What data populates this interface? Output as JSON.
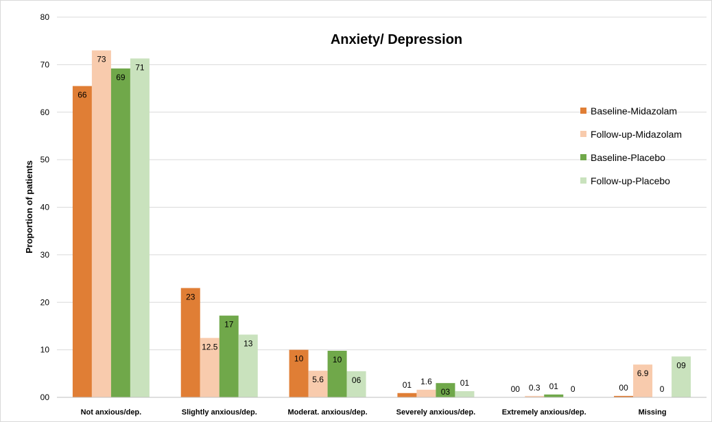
{
  "chart_data": {
    "type": "bar",
    "title": "Anxiety/ Depression",
    "xlabel": "",
    "ylabel": "Proportion of patients",
    "ylim": [
      0,
      80
    ],
    "yticks": [
      0,
      10,
      20,
      30,
      40,
      50,
      60,
      70,
      80
    ],
    "ytick_labels": [
      "00",
      "10",
      "20",
      "30",
      "40",
      "50",
      "60",
      "70",
      "80"
    ],
    "grid": true,
    "legend_position": "right",
    "categories": [
      "Not anxious/dep.",
      "Slightly anxious/dep.",
      "Moderat. anxious/dep.",
      "Severely anxious/dep.",
      "Extremely anxious/dep.",
      "Missing"
    ],
    "series": [
      {
        "name": "Baseline-Midazolam",
        "color": "#e07e35",
        "values": [
          65.5,
          23,
          10,
          0.9,
          0,
          0.3
        ],
        "labels": [
          "66",
          "23",
          "10",
          "01",
          "00",
          "00"
        ]
      },
      {
        "name": "Follow-up-Midazolam",
        "color": "#f8cbad",
        "values": [
          73,
          12.5,
          5.6,
          1.6,
          0.3,
          6.9
        ],
        "labels": [
          "73",
          "12.5",
          "5.6",
          "1.6",
          "0.3",
          "6.9"
        ]
      },
      {
        "name": "Baseline-Placebo",
        "color": "#70a84a",
        "values": [
          69.2,
          17.2,
          9.8,
          3,
          0.6,
          0
        ],
        "labels": [
          "69",
          "17",
          "10",
          "03",
          "01",
          "0"
        ]
      },
      {
        "name": "Follow-up-Placebo",
        "color": "#c9e2bd",
        "values": [
          71.3,
          13.2,
          5.5,
          1.3,
          0,
          8.6
        ],
        "labels": [
          "71",
          "13",
          "06",
          "01",
          "0",
          "09"
        ]
      }
    ]
  }
}
